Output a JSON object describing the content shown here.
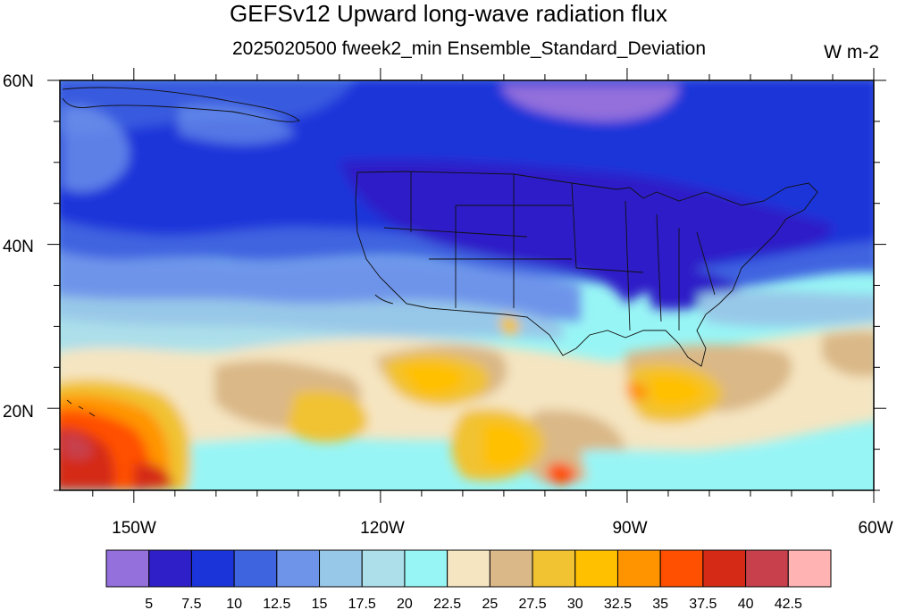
{
  "title": "GEFSv12 Upward long-wave radiation flux",
  "subtitle": "2025020500 fweek2_min Ensemble_Standard_Deviation",
  "units": "W m-2",
  "lat_ticks": [
    {
      "label": "60N",
      "lat": 60
    },
    {
      "label": "40N",
      "lat": 40
    },
    {
      "label": "20N",
      "lat": 20
    }
  ],
  "lon_ticks": [
    {
      "label": "150W",
      "lon": -150
    },
    {
      "label": "120W",
      "lon": -120
    },
    {
      "label": "90W",
      "lon": -90
    },
    {
      "label": "60W",
      "lon": -60
    }
  ],
  "map_extent": {
    "lon_min": -159,
    "lon_max": -60,
    "lat_min": 10,
    "lat_max": 60
  },
  "colorbar": {
    "colors": [
      "#9370db",
      "#2f1fc8",
      "#1b34d9",
      "#3f64e0",
      "#6e94ea",
      "#98c8e8",
      "#acdfea",
      "#98f5f5",
      "#f5e5c1",
      "#dab887",
      "#f1c232",
      "#ffc000",
      "#ff9400",
      "#ff4f00",
      "#d42a16",
      "#c8404b",
      "#ffb3b3"
    ],
    "levels": [
      "5",
      "7.5",
      "10",
      "12.5",
      "15",
      "17.5",
      "20",
      "22.5",
      "25",
      "27.5",
      "30",
      "32.5",
      "35",
      "37.5",
      "40",
      "42.5"
    ]
  }
}
